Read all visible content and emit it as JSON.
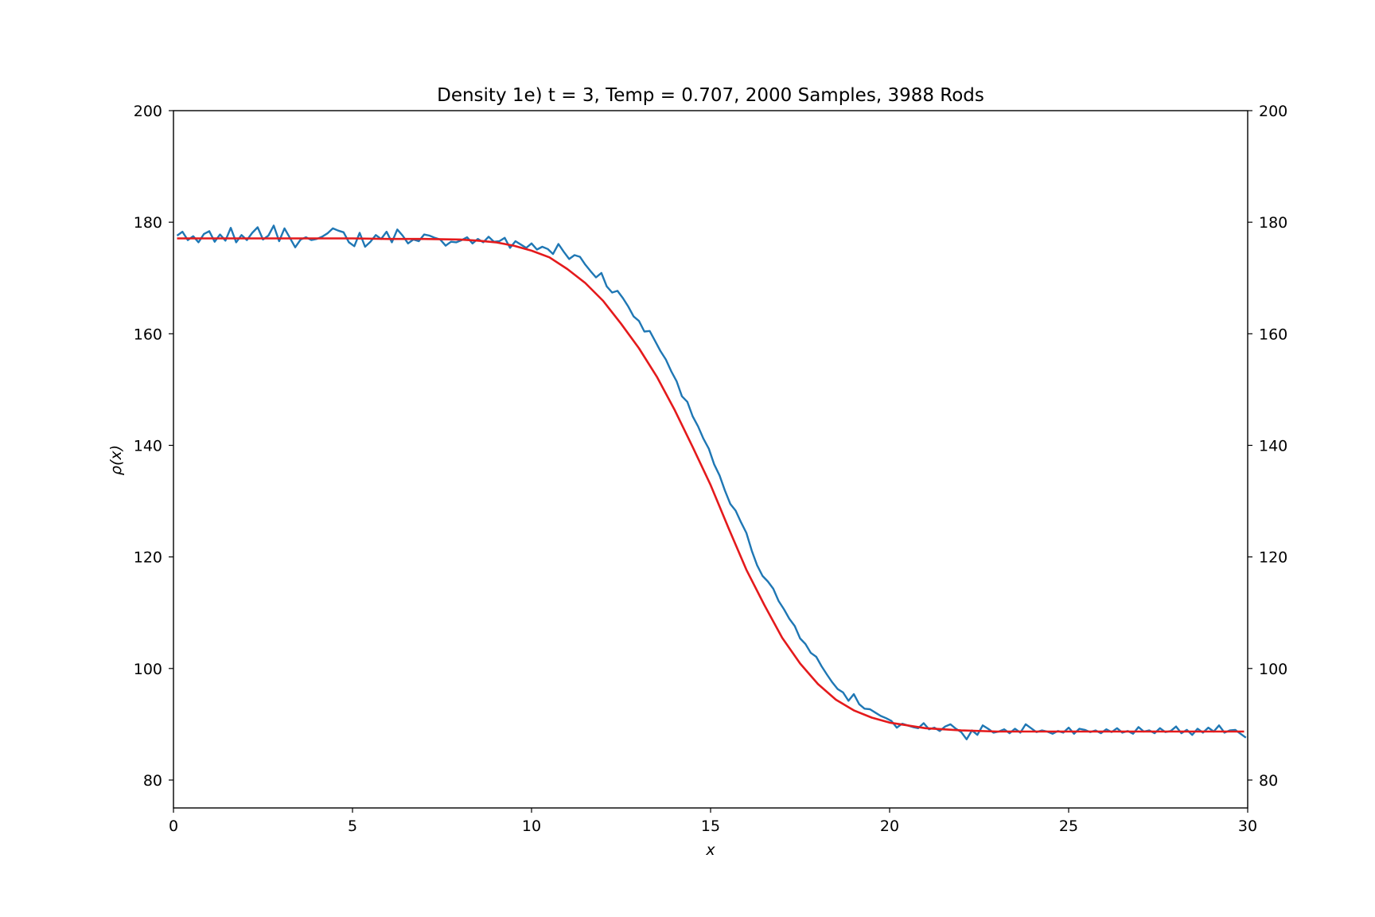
{
  "chart_data": {
    "type": "line",
    "title": "Density 1e) t = 3, Temp = 0.707, 2000 Samples, 3988 Rods",
    "xlabel": "x",
    "ylabel": "ρ(x)",
    "xlim": [
      0,
      30
    ],
    "ylim": [
      75,
      200
    ],
    "xticks": [
      0,
      5,
      10,
      15,
      20,
      25,
      30
    ],
    "yticks": [
      80,
      100,
      120,
      140,
      160,
      180,
      200
    ],
    "right_axis_ticks": true,
    "grid": false,
    "series": [
      {
        "color": "#1f77b4",
        "style": "noisy",
        "x": [
          0.1,
          0.25,
          0.4,
          0.55,
          0.7,
          0.85,
          1.0,
          1.15,
          1.3,
          1.45,
          1.6,
          1.75,
          1.9,
          2.05,
          2.2,
          2.35,
          2.5,
          2.65,
          2.8,
          2.95,
          3.1,
          3.25,
          3.4,
          3.55,
          3.7,
          3.85,
          4.0,
          4.15,
          4.3,
          4.45,
          4.6,
          4.75,
          4.9,
          5.05,
          5.2,
          5.35,
          5.5,
          5.65,
          5.8,
          5.95,
          6.1,
          6.25,
          6.4,
          6.55,
          6.7,
          6.85,
          7.0,
          7.15,
          7.3,
          7.45,
          7.6,
          7.75,
          7.9,
          8.05,
          8.2,
          8.35,
          8.5,
          8.65,
          8.8,
          8.95,
          9.1,
          9.25,
          9.4,
          9.55,
          9.7,
          9.85,
          10.0,
          10.15,
          10.3,
          10.45,
          10.6,
          10.75,
          10.9,
          11.05,
          11.2,
          11.35,
          11.5,
          11.65,
          11.8,
          11.95,
          12.1,
          12.25,
          12.4,
          12.55,
          12.7,
          12.85,
          13.0,
          13.15,
          13.3,
          13.45,
          13.6,
          13.75,
          13.9,
          14.05,
          14.2,
          14.35,
          14.5,
          14.65,
          14.8,
          14.95,
          15.1,
          15.25,
          15.4,
          15.55,
          15.7,
          15.85,
          16.0,
          16.15,
          16.3,
          16.45,
          16.6,
          16.75,
          16.9,
          17.05,
          17.2,
          17.35,
          17.5,
          17.65,
          17.8,
          17.95,
          18.1,
          18.25,
          18.4,
          18.55,
          18.7,
          18.85,
          19.0,
          19.15,
          19.3,
          19.45,
          19.6,
          19.75,
          19.9,
          20.05,
          20.2,
          20.35,
          20.5,
          20.65,
          20.8,
          20.95,
          21.1,
          21.25,
          21.4,
          21.55,
          21.7,
          21.85,
          22.0,
          22.15,
          22.3,
          22.45,
          22.6,
          22.75,
          22.9,
          23.05,
          23.2,
          23.35,
          23.5,
          23.65,
          23.8,
          23.95,
          24.1,
          24.25,
          24.4,
          24.55,
          24.7,
          24.85,
          25.0,
          25.15,
          25.3,
          25.45,
          25.6,
          25.75,
          25.9,
          26.05,
          26.2,
          26.35,
          26.5,
          26.65,
          26.8,
          26.95,
          27.1,
          27.25,
          27.4,
          27.55,
          27.7,
          27.85,
          28.0,
          28.15,
          28.3,
          28.45,
          28.6,
          28.75,
          28.9,
          29.05,
          29.2,
          29.35,
          29.5,
          29.65,
          29.8,
          29.95
        ],
        "y": [
          177.6,
          178.3,
          176.8,
          177.5,
          176.4,
          177.9,
          178.4,
          176.5,
          177.8,
          176.7,
          179.0,
          176.4,
          177.7,
          176.8,
          178.1,
          179.1,
          176.9,
          177.6,
          179.4,
          176.6,
          178.9,
          177.2,
          175.5,
          176.9,
          177.3,
          176.8,
          177.0,
          177.4,
          178.0,
          178.9,
          178.5,
          178.2,
          176.4,
          175.7,
          178.1,
          175.6,
          176.5,
          177.7,
          177.0,
          178.3,
          176.4,
          178.7,
          177.6,
          176.2,
          176.9,
          176.6,
          177.8,
          177.6,
          177.2,
          176.9,
          175.8,
          176.5,
          176.4,
          176.8,
          177.3,
          176.2,
          177.0,
          176.4,
          177.4,
          176.5,
          176.6,
          177.2,
          175.4,
          176.6,
          176.0,
          175.4,
          176.2,
          175.1,
          175.6,
          175.2,
          174.3,
          176.1,
          174.7,
          173.4,
          174.1,
          173.8,
          172.4,
          171.2,
          170.1,
          170.9,
          168.5,
          167.4,
          167.7,
          166.4,
          164.9,
          163.1,
          162.3,
          160.4,
          160.5,
          158.7,
          156.9,
          155.4,
          153.3,
          151.5,
          148.8,
          147.8,
          145.2,
          143.4,
          141.2,
          139.4,
          136.6,
          134.6,
          131.9,
          129.5,
          128.3,
          126.2,
          124.3,
          121.1,
          118.5,
          116.6,
          115.6,
          114.3,
          112.1,
          110.6,
          108.9,
          107.6,
          105.4,
          104.4,
          102.8,
          102.1,
          100.4,
          98.9,
          97.5,
          96.3,
          95.7,
          94.2,
          95.4,
          93.6,
          92.8,
          92.7,
          92.1,
          91.5,
          91.1,
          90.6,
          89.4,
          90.1,
          89.8,
          89.5,
          89.3,
          90.2,
          89.1,
          89.4,
          88.8,
          89.6,
          90.0,
          89.2,
          88.6,
          87.3,
          88.9,
          88.1,
          89.8,
          89.2,
          88.5,
          88.7,
          89.1,
          88.4,
          89.2,
          88.5,
          90.0,
          89.3,
          88.6,
          88.9,
          88.7,
          88.3,
          88.8,
          88.5,
          89.4,
          88.3,
          89.2,
          89.0,
          88.6,
          88.9,
          88.4,
          89.1,
          88.6,
          89.3,
          88.5,
          88.8,
          88.3,
          89.5,
          88.7,
          88.9,
          88.4,
          89.3,
          88.6,
          88.8,
          89.6,
          88.4,
          89.0,
          88.1,
          89.2,
          88.5,
          89.4,
          88.7,
          89.8,
          88.5,
          88.9,
          89.0,
          88.3,
          87.6
        ]
      },
      {
        "color": "#e41a1c",
        "style": "fit",
        "x": [
          0.1,
          1,
          2,
          3,
          4,
          5,
          6,
          7,
          8,
          8.5,
          9,
          9.5,
          10,
          10.5,
          11,
          11.5,
          12,
          12.5,
          13,
          13.5,
          14,
          14.5,
          15,
          15.5,
          16,
          16.5,
          17,
          17.5,
          18,
          18.5,
          19,
          19.5,
          20,
          21,
          22,
          23,
          24,
          25,
          26,
          27,
          28,
          29,
          29.9
        ],
        "y": [
          177.1,
          177.1,
          177.1,
          177.1,
          177.1,
          177.1,
          177.0,
          177.0,
          176.9,
          176.7,
          176.4,
          175.8,
          174.9,
          173.7,
          171.6,
          169.1,
          165.9,
          161.8,
          157.4,
          152.3,
          146.3,
          139.7,
          132.9,
          125.2,
          117.7,
          111.4,
          105.5,
          100.9,
          97.2,
          94.4,
          92.5,
          91.2,
          90.3,
          89.3,
          88.9,
          88.7,
          88.7,
          88.7,
          88.7,
          88.7,
          88.7,
          88.7,
          88.7
        ]
      }
    ]
  }
}
